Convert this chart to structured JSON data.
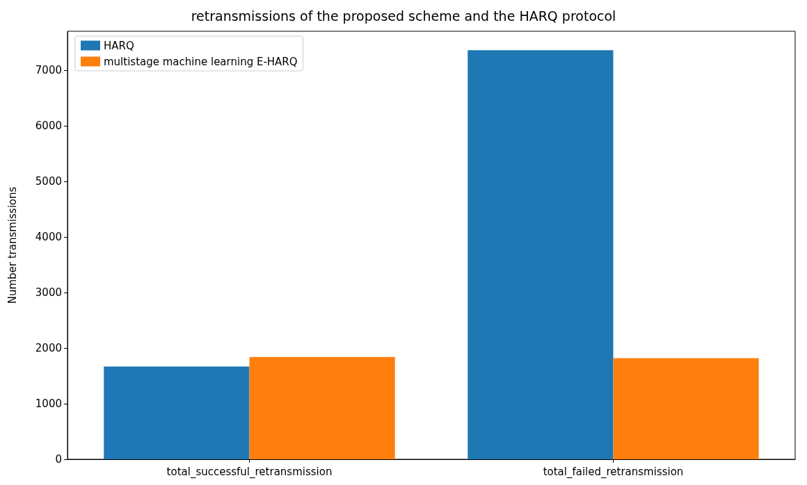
{
  "chart_data": {
    "type": "bar",
    "title": "retransmissions of the proposed scheme and the HARQ protocol",
    "ylabel": "Number transmissions",
    "categories": [
      "total_successful_retransmission",
      "total_failed_retransmission"
    ],
    "series": [
      {
        "name": "HARQ",
        "color": "#1f77b4",
        "values": [
          1670,
          7360
        ]
      },
      {
        "name": "multistage machine learning E-HARQ",
        "color": "#ff7f0e",
        "values": [
          1840,
          1820
        ]
      }
    ],
    "ylim": [
      0,
      7700
    ],
    "yticks": [
      0,
      1000,
      2000,
      3000,
      4000,
      5000,
      6000,
      7000
    ],
    "legend": "top left",
    "grid": false
  }
}
